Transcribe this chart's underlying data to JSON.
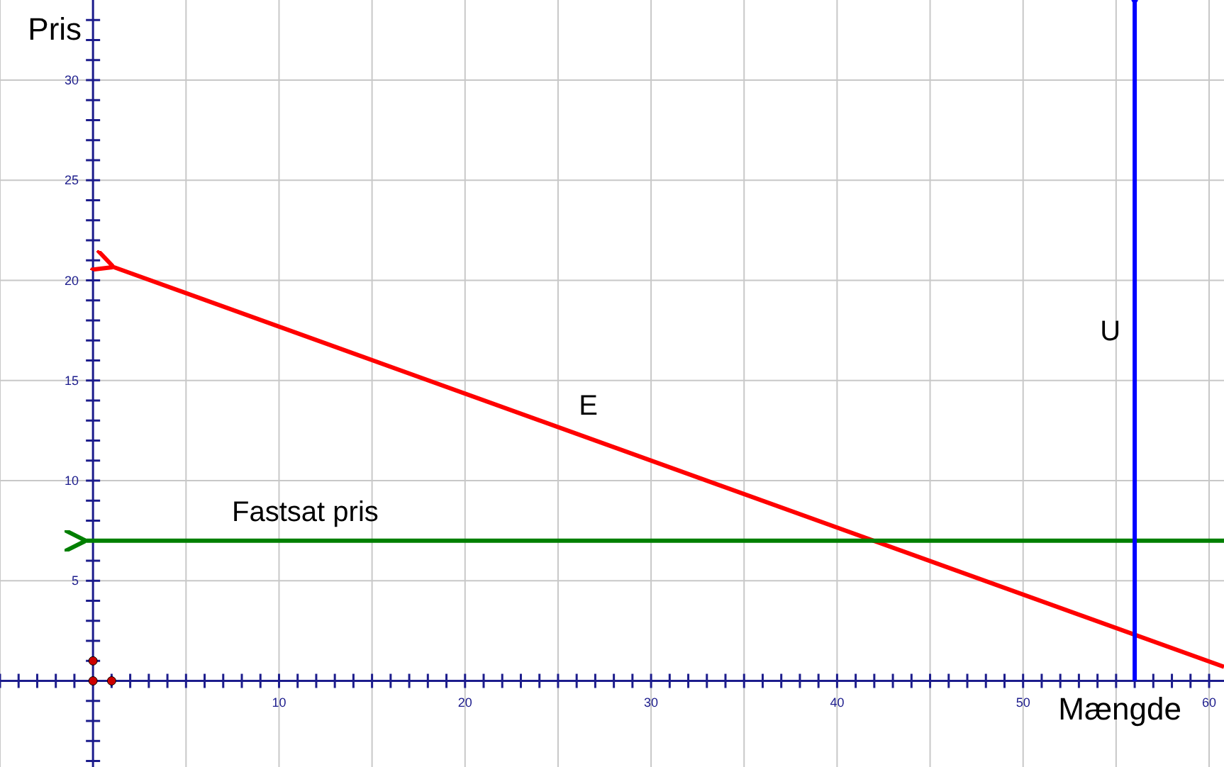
{
  "chart_data": {
    "type": "line",
    "xlabel": "Mængde",
    "ylabel": "Pris",
    "xlim": [
      -5,
      60.8
    ],
    "ylim": [
      -4.3,
      34
    ],
    "xticks": [
      {
        "value": -5,
        "label": null
      },
      {
        "value": -4,
        "label": null
      },
      {
        "value": -3,
        "label": null
      },
      {
        "value": -2,
        "label": null
      },
      {
        "value": -1,
        "label": null
      },
      {
        "value": 1,
        "label": null
      },
      {
        "value": 2,
        "label": null
      },
      {
        "value": 3,
        "label": null
      },
      {
        "value": 4,
        "label": null
      },
      {
        "value": 5,
        "label": null
      },
      {
        "value": 6,
        "label": null
      },
      {
        "value": 7,
        "label": null
      },
      {
        "value": 8,
        "label": null
      },
      {
        "value": 9,
        "label": null
      },
      10,
      {
        "value": 11,
        "label": null
      },
      {
        "value": 12,
        "label": null
      },
      {
        "value": 13,
        "label": null
      },
      {
        "value": 14,
        "label": null
      },
      {
        "value": 15,
        "label": null
      },
      {
        "value": 16,
        "label": null
      },
      {
        "value": 17,
        "label": null
      },
      {
        "value": 18,
        "label": null
      },
      {
        "value": 19,
        "label": null
      },
      20,
      {
        "value": 21,
        "label": null
      },
      {
        "value": 22,
        "label": null
      },
      {
        "value": 23,
        "label": null
      },
      {
        "value": 24,
        "label": null
      },
      {
        "value": 25,
        "label": null
      },
      {
        "value": 26,
        "label": null
      },
      {
        "value": 27,
        "label": null
      },
      {
        "value": 28,
        "label": null
      },
      {
        "value": 29,
        "label": null
      },
      30,
      {
        "value": 31,
        "label": null
      },
      {
        "value": 32,
        "label": null
      },
      {
        "value": 33,
        "label": null
      },
      {
        "value": 34,
        "label": null
      },
      {
        "value": 35,
        "label": null
      },
      {
        "value": 36,
        "label": null
      },
      {
        "value": 37,
        "label": null
      },
      {
        "value": 38,
        "label": null
      },
      {
        "value": 39,
        "label": null
      },
      40,
      {
        "value": 41,
        "label": null
      },
      {
        "value": 42,
        "label": null
      },
      {
        "value": 43,
        "label": null
      },
      {
        "value": 44,
        "label": null
      },
      {
        "value": 45,
        "label": null
      },
      {
        "value": 46,
        "label": null
      },
      {
        "value": 47,
        "label": null
      },
      {
        "value": 48,
        "label": null
      },
      {
        "value": 49,
        "label": null
      },
      50,
      {
        "value": 51,
        "label": null
      },
      {
        "value": 52,
        "label": null
      },
      {
        "value": 53,
        "label": null
      },
      {
        "value": 54,
        "label": null
      },
      {
        "value": 55,
        "label": null
      },
      {
        "value": 56,
        "label": null
      },
      {
        "value": 57,
        "label": null
      },
      {
        "value": 58,
        "label": null
      },
      {
        "value": 59,
        "label": null
      },
      60
    ],
    "yticks": [
      {
        "value": -4,
        "label": null
      },
      {
        "value": -3,
        "label": null
      },
      {
        "value": -2,
        "label": null
      },
      {
        "value": -1,
        "label": null
      },
      {
        "value": 1,
        "label": null
      },
      {
        "value": 2,
        "label": null
      },
      {
        "value": 3,
        "label": null
      },
      {
        "value": 4,
        "label": null
      },
      5,
      {
        "value": 6,
        "label": null
      },
      {
        "value": 7,
        "label": null
      },
      {
        "value": 8,
        "label": null
      },
      {
        "value": 9,
        "label": null
      },
      10,
      {
        "value": 11,
        "label": null
      },
      {
        "value": 12,
        "label": null
      },
      {
        "value": 13,
        "label": null
      },
      {
        "value": 14,
        "label": null
      },
      15,
      {
        "value": 16,
        "label": null
      },
      {
        "value": 17,
        "label": null
      },
      {
        "value": 18,
        "label": null
      },
      {
        "value": 19,
        "label": null
      },
      20,
      {
        "value": 21,
        "label": null
      },
      {
        "value": 22,
        "label": null
      },
      {
        "value": 23,
        "label": null
      },
      {
        "value": 24,
        "label": null
      },
      25,
      {
        "value": 26,
        "label": null
      },
      {
        "value": 27,
        "label": null
      },
      {
        "value": 28,
        "label": null
      },
      {
        "value": 29,
        "label": null
      },
      30,
      {
        "value": 31,
        "label": null
      },
      {
        "value": 32,
        "label": null
      },
      {
        "value": 33,
        "label": null
      }
    ],
    "grid": true,
    "marker": "none",
    "line_style": "solid",
    "series": [
      {
        "name": "E",
        "color": "#ff0000",
        "x": [
          1,
          60.8
        ],
        "values": [
          20.7,
          0.7
        ]
      },
      {
        "name": "Fastsat pris",
        "color": "#007f00",
        "x": [
          -0.5,
          60.8
        ],
        "values": [
          7,
          7
        ]
      },
      {
        "name": "U",
        "color": "#0000ff",
        "x": [
          56,
          56
        ],
        "values": [
          34,
          0
        ]
      },
      {
        "type": "scatter",
        "marker": "circle",
        "color": "#cc0000",
        "x": [
          0,
          1,
          0
        ],
        "values": [
          0,
          0,
          1
        ]
      }
    ]
  }
}
